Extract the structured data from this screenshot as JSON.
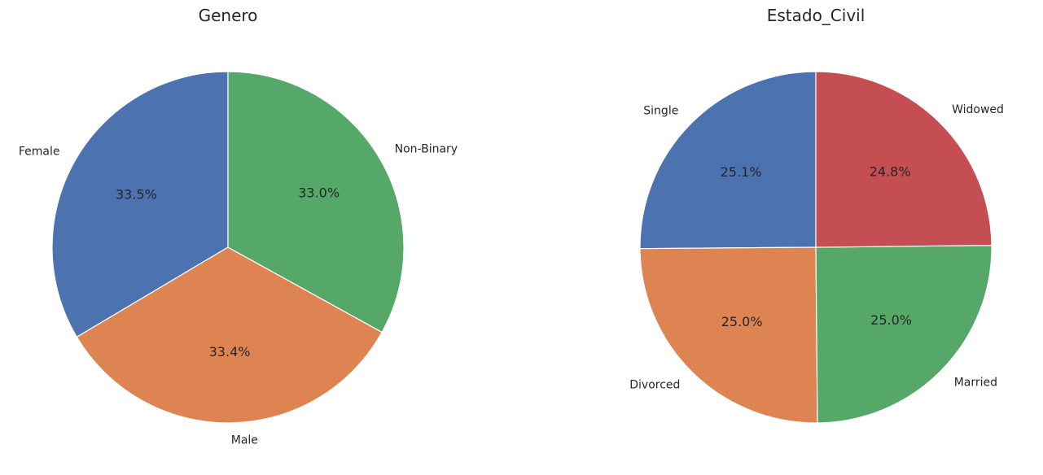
{
  "chart_data": [
    {
      "type": "pie",
      "title": "Genero",
      "start_angle_deg": 90,
      "direction": "counterclockwise",
      "slices": [
        {
          "label": "Female",
          "value": 33.5,
          "display": "33.5%",
          "color": "#4c72b0"
        },
        {
          "label": "Male",
          "value": 33.4,
          "display": "33.4%",
          "color": "#dd8452"
        },
        {
          "label": "Non-Binary",
          "value": 33.0,
          "display": "33.0%",
          "color": "#55a868"
        }
      ]
    },
    {
      "type": "pie",
      "title": "Estado_Civil",
      "start_angle_deg": 90,
      "direction": "counterclockwise",
      "slices": [
        {
          "label": "Single",
          "value": 25.1,
          "display": "25.1%",
          "color": "#4c72b0"
        },
        {
          "label": "Divorced",
          "value": 25.0,
          "display": "25.0%",
          "color": "#dd8452"
        },
        {
          "label": "Married",
          "value": 25.0,
          "display": "25.0%",
          "color": "#55a868"
        },
        {
          "label": "Widowed",
          "value": 24.8,
          "display": "24.8%",
          "color": "#c44e52"
        }
      ]
    }
  ]
}
